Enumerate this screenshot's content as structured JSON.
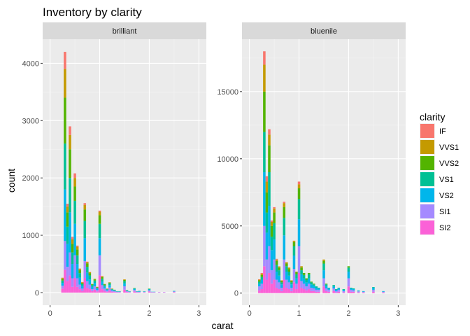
{
  "chart_data": {
    "type": "bar",
    "stacked": true,
    "title": "Inventory by clarity",
    "xlabel": "carat",
    "ylabel": "count",
    "x_ticks": [
      0,
      1,
      2,
      3
    ],
    "xlim": [
      -0.15,
      3.15
    ],
    "bin_width": 0.05,
    "grid": true,
    "legend": {
      "title": "clarity",
      "placement": "right",
      "entries": [
        {
          "name": "IF",
          "color": "#F8766D"
        },
        {
          "name": "VVS1",
          "color": "#C49A00"
        },
        {
          "name": "VVS2",
          "color": "#53B400"
        },
        {
          "name": "VS1",
          "color": "#00C094"
        },
        {
          "name": "VS2",
          "color": "#00B6EB"
        },
        {
          "name": "SI1",
          "color": "#A58AFF"
        },
        {
          "name": "SI2",
          "color": "#FB61D7"
        }
      ]
    },
    "panels": [
      {
        "facet": "brilliant",
        "ylim": [
          -220,
          4420
        ],
        "y_ticks": [
          0,
          1000,
          2000,
          3000,
          4000
        ],
        "stack_order": [
          "SI2",
          "SI1",
          "VS2",
          "VS1",
          "VVS2",
          "VVS1",
          "IF"
        ],
        "bins": [
          {
            "x": 0.25,
            "SI2": 70,
            "SI1": 50,
            "VS2": 50,
            "VS1": 40,
            "VVS2": 30,
            "VVS1": 15,
            "IF": 5
          },
          {
            "x": 0.3,
            "SI2": 400,
            "SI1": 500,
            "VS2": 900,
            "VS1": 800,
            "VVS2": 800,
            "VVS1": 500,
            "IF": 300
          },
          {
            "x": 0.35,
            "SI2": 200,
            "SI1": 250,
            "VS2": 400,
            "VS1": 300,
            "VVS2": 250,
            "VVS1": 100,
            "IF": 50
          },
          {
            "x": 0.4,
            "SI2": 300,
            "SI1": 400,
            "VS2": 700,
            "VS1": 600,
            "VVS2": 500,
            "VVS1": 250,
            "IF": 150
          },
          {
            "x": 0.45,
            "SI2": 100,
            "SI1": 150,
            "VS2": 250,
            "VS1": 200,
            "VVS2": 150,
            "VVS1": 80,
            "IF": 40
          },
          {
            "x": 0.5,
            "SI2": 250,
            "SI1": 400,
            "VS2": 550,
            "VS1": 400,
            "VVS2": 250,
            "VVS1": 150,
            "IF": 80
          },
          {
            "x": 0.55,
            "SI2": 100,
            "SI1": 150,
            "VS2": 250,
            "VS1": 150,
            "VVS2": 100,
            "VVS1": 50,
            "IF": 20
          },
          {
            "x": 0.6,
            "SI2": 60,
            "SI1": 80,
            "VS2": 120,
            "VS1": 80,
            "VVS2": 50,
            "VVS1": 20,
            "IF": 10
          },
          {
            "x": 0.65,
            "SI2": 30,
            "SI1": 40,
            "VS2": 50,
            "VS1": 30,
            "VVS2": 20,
            "VVS1": 10,
            "IF": 5
          },
          {
            "x": 0.7,
            "SI2": 250,
            "SI1": 300,
            "VS2": 400,
            "VS1": 300,
            "VVS2": 200,
            "VVS1": 80,
            "IF": 30
          },
          {
            "x": 0.75,
            "SI2": 80,
            "SI1": 120,
            "VS2": 150,
            "VS1": 100,
            "VVS2": 60,
            "VVS1": 20,
            "IF": 10
          },
          {
            "x": 0.8,
            "SI2": 60,
            "SI1": 80,
            "VS2": 90,
            "VS1": 70,
            "VVS2": 40,
            "VVS1": 15,
            "IF": 5
          },
          {
            "x": 0.85,
            "SI2": 25,
            "SI1": 35,
            "VS2": 40,
            "VS1": 30,
            "VVS2": 15,
            "VVS1": 5,
            "IF": 0
          },
          {
            "x": 0.9,
            "SI2": 50,
            "SI1": 60,
            "VS2": 60,
            "VS1": 40,
            "VVS2": 20,
            "VVS1": 10,
            "IF": 0
          },
          {
            "x": 0.95,
            "SI2": 20,
            "SI1": 25,
            "VS2": 25,
            "VS1": 15,
            "VVS2": 10,
            "VVS1": 5,
            "IF": 0
          },
          {
            "x": 1.0,
            "SI2": 300,
            "SI1": 350,
            "VS2": 300,
            "VS1": 250,
            "VVS2": 150,
            "VVS1": 60,
            "IF": 20
          },
          {
            "x": 1.05,
            "SI2": 60,
            "SI1": 70,
            "VS2": 60,
            "VS1": 50,
            "VVS2": 30,
            "VVS1": 15,
            "IF": 5
          },
          {
            "x": 1.1,
            "SI2": 30,
            "SI1": 40,
            "VS2": 35,
            "VS1": 25,
            "VVS2": 15,
            "VVS1": 5,
            "IF": 0
          },
          {
            "x": 1.15,
            "SI2": 15,
            "SI1": 20,
            "VS2": 15,
            "VS1": 10,
            "VVS2": 5,
            "VVS1": 5,
            "IF": 0
          },
          {
            "x": 1.2,
            "SI2": 40,
            "SI1": 50,
            "VS2": 40,
            "VS1": 30,
            "VVS2": 15,
            "VVS1": 5,
            "IF": 0
          },
          {
            "x": 1.25,
            "SI2": 15,
            "SI1": 20,
            "VS2": 15,
            "VS1": 10,
            "VVS2": 5,
            "VVS1": 5,
            "IF": 0
          },
          {
            "x": 1.3,
            "SI2": 10,
            "SI1": 15,
            "VS2": 10,
            "VS1": 10,
            "VVS2": 5,
            "VVS1": 0,
            "IF": 0
          },
          {
            "x": 1.35,
            "SI2": 5,
            "SI1": 10,
            "VS2": 5,
            "VS1": 5,
            "VVS2": 0,
            "VVS1": 0,
            "IF": 0
          },
          {
            "x": 1.4,
            "SI2": 5,
            "SI1": 10,
            "VS2": 5,
            "VS1": 5,
            "VVS2": 0,
            "VVS1": 0,
            "IF": 0
          },
          {
            "x": 1.5,
            "SI2": 50,
            "SI1": 60,
            "VS2": 50,
            "VS1": 40,
            "VVS2": 20,
            "VVS1": 10,
            "IF": 0
          },
          {
            "x": 1.55,
            "SI2": 10,
            "SI1": 15,
            "VS2": 10,
            "VS1": 5,
            "VVS2": 5,
            "VVS1": 0,
            "IF": 0
          },
          {
            "x": 1.6,
            "SI2": 5,
            "SI1": 10,
            "VS2": 5,
            "VS1": 5,
            "VVS2": 0,
            "VVS1": 0,
            "IF": 0
          },
          {
            "x": 1.7,
            "SI2": 20,
            "SI1": 25,
            "VS2": 20,
            "VS1": 10,
            "VVS2": 5,
            "VVS1": 0,
            "IF": 0
          },
          {
            "x": 1.75,
            "SI2": 5,
            "SI1": 10,
            "VS2": 5,
            "VS1": 5,
            "VVS2": 0,
            "VVS1": 0,
            "IF": 0
          },
          {
            "x": 1.8,
            "SI2": 5,
            "SI1": 10,
            "VS2": 10,
            "VS1": 5,
            "VVS2": 0,
            "VVS1": 0,
            "IF": 0
          },
          {
            "x": 1.9,
            "SI2": 5,
            "SI1": 10,
            "VS2": 5,
            "VS1": 5,
            "VVS2": 0,
            "VVS1": 0,
            "IF": 0
          },
          {
            "x": 2.0,
            "SI2": 20,
            "SI1": 20,
            "VS2": 15,
            "VS1": 10,
            "VVS2": 5,
            "VVS1": 0,
            "IF": 0
          },
          {
            "x": 2.05,
            "SI2": 5,
            "SI1": 5,
            "VS2": 5,
            "VS1": 0,
            "VVS2": 0,
            "VVS1": 0,
            "IF": 0
          },
          {
            "x": 2.1,
            "SI2": 5,
            "SI1": 5,
            "VS2": 5,
            "VS1": 0,
            "VVS2": 0,
            "VVS1": 0,
            "IF": 0
          },
          {
            "x": 2.2,
            "SI2": 5,
            "SI1": 5,
            "VS2": 0,
            "VS1": 0,
            "VVS2": 0,
            "VVS1": 0,
            "IF": 0
          },
          {
            "x": 2.3,
            "SI2": 5,
            "SI1": 5,
            "VS2": 0,
            "VS1": 0,
            "VVS2": 0,
            "VVS1": 0,
            "IF": 0
          },
          {
            "x": 2.5,
            "SI2": 10,
            "SI1": 10,
            "VS2": 5,
            "VS1": 5,
            "VVS2": 0,
            "VVS1": 0,
            "IF": 0
          }
        ]
      },
      {
        "facet": "bluenile",
        "ylim": [
          -900,
          18900
        ],
        "y_ticks": [
          0,
          5000,
          10000,
          15000
        ],
        "stack_order": [
          "SI2",
          "SI1",
          "VS2",
          "VS1",
          "VVS2",
          "VVS1",
          "IF"
        ],
        "bins": [
          {
            "x": 0.2,
            "SI2": 200,
            "SI1": 300,
            "VS2": 200,
            "VS1": 150,
            "VVS2": 100,
            "VVS1": 50,
            "IF": 30
          },
          {
            "x": 0.25,
            "SI2": 300,
            "SI1": 400,
            "VS2": 300,
            "VS1": 200,
            "VVS2": 150,
            "VVS1": 100,
            "IF": 50
          },
          {
            "x": 0.3,
            "SI2": 2000,
            "SI1": 3000,
            "VS2": 4000,
            "VS1": 3000,
            "VVS2": 3000,
            "VVS1": 2000,
            "IF": 1000
          },
          {
            "x": 0.35,
            "SI2": 1000,
            "SI1": 1500,
            "VS2": 2000,
            "VS1": 1500,
            "VVS2": 1500,
            "VVS1": 800,
            "IF": 400
          },
          {
            "x": 0.4,
            "SI2": 1500,
            "SI1": 2000,
            "VS2": 3000,
            "VS1": 2500,
            "VVS2": 2000,
            "VVS1": 800,
            "IF": 400
          },
          {
            "x": 0.45,
            "SI2": 700,
            "SI1": 1000,
            "VS2": 1500,
            "VS1": 1000,
            "VVS2": 800,
            "VVS1": 300,
            "IF": 100
          },
          {
            "x": 0.5,
            "SI2": 1000,
            "SI1": 1500,
            "VS2": 1500,
            "VS1": 1200,
            "VVS2": 800,
            "VVS1": 300,
            "IF": 100
          },
          {
            "x": 0.55,
            "SI2": 400,
            "SI1": 600,
            "VS2": 600,
            "VS1": 500,
            "VVS2": 300,
            "VVS1": 100,
            "IF": 50
          },
          {
            "x": 0.6,
            "SI2": 300,
            "SI1": 500,
            "VS2": 500,
            "VS1": 400,
            "VVS2": 200,
            "VVS1": 80,
            "IF": 20
          },
          {
            "x": 0.65,
            "SI2": 150,
            "SI1": 250,
            "VS2": 250,
            "VS1": 150,
            "VVS2": 100,
            "VVS1": 50,
            "IF": 0
          },
          {
            "x": 0.7,
            "SI2": 1000,
            "SI1": 1500,
            "VS2": 1800,
            "VS1": 1300,
            "VVS2": 800,
            "VVS1": 300,
            "IF": 100
          },
          {
            "x": 0.75,
            "SI2": 400,
            "SI1": 600,
            "VS2": 600,
            "VS1": 400,
            "VVS2": 200,
            "VVS1": 100,
            "IF": 0
          },
          {
            "x": 0.8,
            "SI2": 300,
            "SI1": 500,
            "VS2": 500,
            "VS1": 300,
            "VVS2": 200,
            "VVS1": 100,
            "IF": 0
          },
          {
            "x": 0.85,
            "SI2": 150,
            "SI1": 250,
            "VS2": 250,
            "VS1": 150,
            "VVS2": 100,
            "VVS1": 50,
            "IF": 0
          },
          {
            "x": 0.9,
            "SI2": 800,
            "SI1": 1000,
            "VS2": 1000,
            "VS1": 700,
            "VVS2": 300,
            "VVS1": 100,
            "IF": 0
          },
          {
            "x": 0.95,
            "SI2": 300,
            "SI1": 400,
            "VS2": 400,
            "VS1": 300,
            "VVS2": 150,
            "VVS1": 50,
            "IF": 0
          },
          {
            "x": 1.0,
            "SI2": 1500,
            "SI1": 2000,
            "VS2": 2000,
            "VS1": 1500,
            "VVS2": 800,
            "VVS1": 300,
            "IF": 200
          },
          {
            "x": 1.05,
            "SI2": 400,
            "SI1": 500,
            "VS2": 500,
            "VS1": 300,
            "VVS2": 200,
            "VVS1": 100,
            "IF": 0
          },
          {
            "x": 1.1,
            "SI2": 300,
            "SI1": 400,
            "VS2": 400,
            "VS1": 250,
            "VVS2": 150,
            "VVS1": 0,
            "IF": 0
          },
          {
            "x": 1.15,
            "SI2": 200,
            "SI1": 300,
            "VS2": 300,
            "VS1": 200,
            "VVS2": 100,
            "VVS1": 0,
            "IF": 0
          },
          {
            "x": 1.2,
            "SI2": 300,
            "SI1": 400,
            "VS2": 400,
            "VS1": 300,
            "VVS2": 100,
            "VVS1": 0,
            "IF": 0
          },
          {
            "x": 1.25,
            "SI2": 150,
            "SI1": 250,
            "VS2": 250,
            "VS1": 150,
            "VVS2": 50,
            "VVS1": 0,
            "IF": 0
          },
          {
            "x": 1.3,
            "SI2": 150,
            "SI1": 200,
            "VS2": 200,
            "VS1": 100,
            "VVS2": 50,
            "VVS1": 0,
            "IF": 0
          },
          {
            "x": 1.35,
            "SI2": 100,
            "SI1": 150,
            "VS2": 150,
            "VS1": 100,
            "VVS2": 0,
            "VVS1": 0,
            "IF": 0
          },
          {
            "x": 1.4,
            "SI2": 100,
            "SI1": 150,
            "VS2": 100,
            "VS1": 50,
            "VVS2": 0,
            "VVS1": 0,
            "IF": 0
          },
          {
            "x": 1.5,
            "SI2": 500,
            "SI1": 600,
            "VS2": 600,
            "VS1": 500,
            "VVS2": 200,
            "VVS1": 100,
            "IF": 0
          },
          {
            "x": 1.55,
            "SI2": 150,
            "SI1": 200,
            "VS2": 200,
            "VS1": 100,
            "VVS2": 50,
            "VVS1": 0,
            "IF": 0
          },
          {
            "x": 1.6,
            "SI2": 100,
            "SI1": 150,
            "VS2": 100,
            "VS1": 50,
            "VVS2": 0,
            "VVS1": 0,
            "IF": 0
          },
          {
            "x": 1.7,
            "SI2": 150,
            "SI1": 200,
            "VS2": 150,
            "VS1": 100,
            "VVS2": 0,
            "VVS1": 0,
            "IF": 0
          },
          {
            "x": 1.75,
            "SI2": 50,
            "SI1": 100,
            "VS2": 100,
            "VS1": 50,
            "VVS2": 0,
            "VVS1": 0,
            "IF": 0
          },
          {
            "x": 1.8,
            "SI2": 100,
            "SI1": 150,
            "VS2": 100,
            "VS1": 50,
            "VVS2": 0,
            "VVS1": 0,
            "IF": 0
          },
          {
            "x": 1.9,
            "SI2": 50,
            "SI1": 100,
            "VS2": 100,
            "VS1": 50,
            "VVS2": 0,
            "VVS1": 0,
            "IF": 0
          },
          {
            "x": 2.0,
            "SI2": 500,
            "SI1": 600,
            "VS2": 500,
            "VS1": 300,
            "VVS2": 100,
            "VVS1": 0,
            "IF": 0
          },
          {
            "x": 2.05,
            "SI2": 100,
            "SI1": 150,
            "VS2": 100,
            "VS1": 50,
            "VVS2": 0,
            "VVS1": 0,
            "IF": 0
          },
          {
            "x": 2.1,
            "SI2": 100,
            "SI1": 100,
            "VS2": 100,
            "VS1": 50,
            "VVS2": 0,
            "VVS1": 0,
            "IF": 0
          },
          {
            "x": 2.2,
            "SI2": 50,
            "SI1": 80,
            "VS2": 50,
            "VS1": 20,
            "VVS2": 0,
            "VVS1": 0,
            "IF": 0
          },
          {
            "x": 2.3,
            "SI2": 50,
            "SI1": 50,
            "VS2": 50,
            "VS1": 0,
            "VVS2": 0,
            "VVS1": 0,
            "IF": 0
          },
          {
            "x": 2.5,
            "SI2": 100,
            "SI1": 150,
            "VS2": 150,
            "VS1": 50,
            "VVS2": 0,
            "VVS1": 0,
            "IF": 0
          },
          {
            "x": 2.7,
            "SI2": 50,
            "SI1": 50,
            "VS2": 50,
            "VS1": 0,
            "VVS2": 0,
            "VVS1": 0,
            "IF": 0
          }
        ]
      }
    ]
  }
}
